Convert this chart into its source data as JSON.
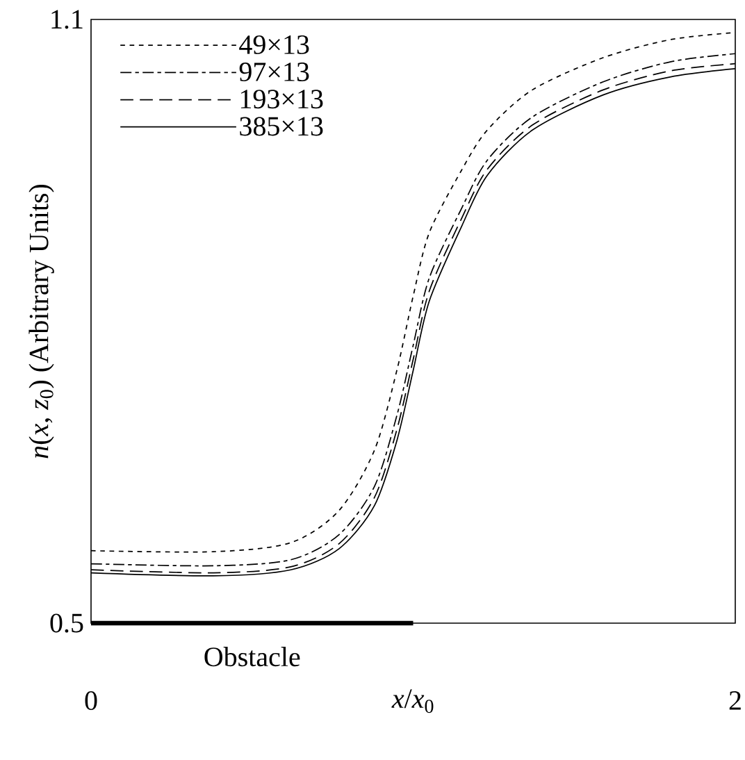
{
  "chart_data": {
    "type": "line",
    "xlabel": "*x*/*x*$_{0}$",
    "ylabel": "*n*(*x*, *z*$_{0}$) (Arbitrary Units)",
    "xlim": [
      0,
      2
    ],
    "ylim": [
      0.5,
      1.1
    ],
    "xticks": [
      0,
      2
    ],
    "yticks": [
      0.5,
      1.1
    ],
    "legend": "top left",
    "x": [
      0,
      0.38,
      0.62,
      0.77,
      0.88,
      0.95,
      1.0,
      1.05,
      1.15,
      1.23,
      1.37,
      1.59,
      1.8,
      2.0
    ],
    "series": [
      {
        "name": "49×13",
        "color": "#000000",
        "line_style": "dotted",
        "values": [
          0.572,
          0.571,
          0.58,
          0.612,
          0.672,
          0.752,
          0.825,
          0.888,
          0.95,
          0.99,
          1.03,
          1.062,
          1.08,
          1.087
        ]
      },
      {
        "name": "97×13",
        "color": "#000000",
        "line_style": "dashdot",
        "values": [
          0.559,
          0.557,
          0.563,
          0.588,
          0.636,
          0.707,
          0.776,
          0.843,
          0.912,
          0.96,
          1.003,
          1.038,
          1.058,
          1.066
        ]
      },
      {
        "name": "193×13",
        "color": "#000000",
        "line_style": "dashed",
        "values": [
          0.553,
          0.55,
          0.556,
          0.579,
          0.625,
          0.693,
          0.762,
          0.83,
          0.902,
          0.951,
          0.995,
          1.03,
          1.049,
          1.056
        ]
      },
      {
        "name": "385×13",
        "color": "#000000",
        "line_style": "solid",
        "values": [
          0.55,
          0.547,
          0.553,
          0.574,
          0.617,
          0.682,
          0.751,
          0.82,
          0.894,
          0.945,
          0.99,
          1.025,
          1.043,
          1.051
        ]
      },
      {
        "name": "Obstacle",
        "color": "#000000",
        "line_style": "solid",
        "x": [
          0,
          1
        ],
        "values": [
          0.5,
          0.5
        ]
      }
    ]
  }
}
